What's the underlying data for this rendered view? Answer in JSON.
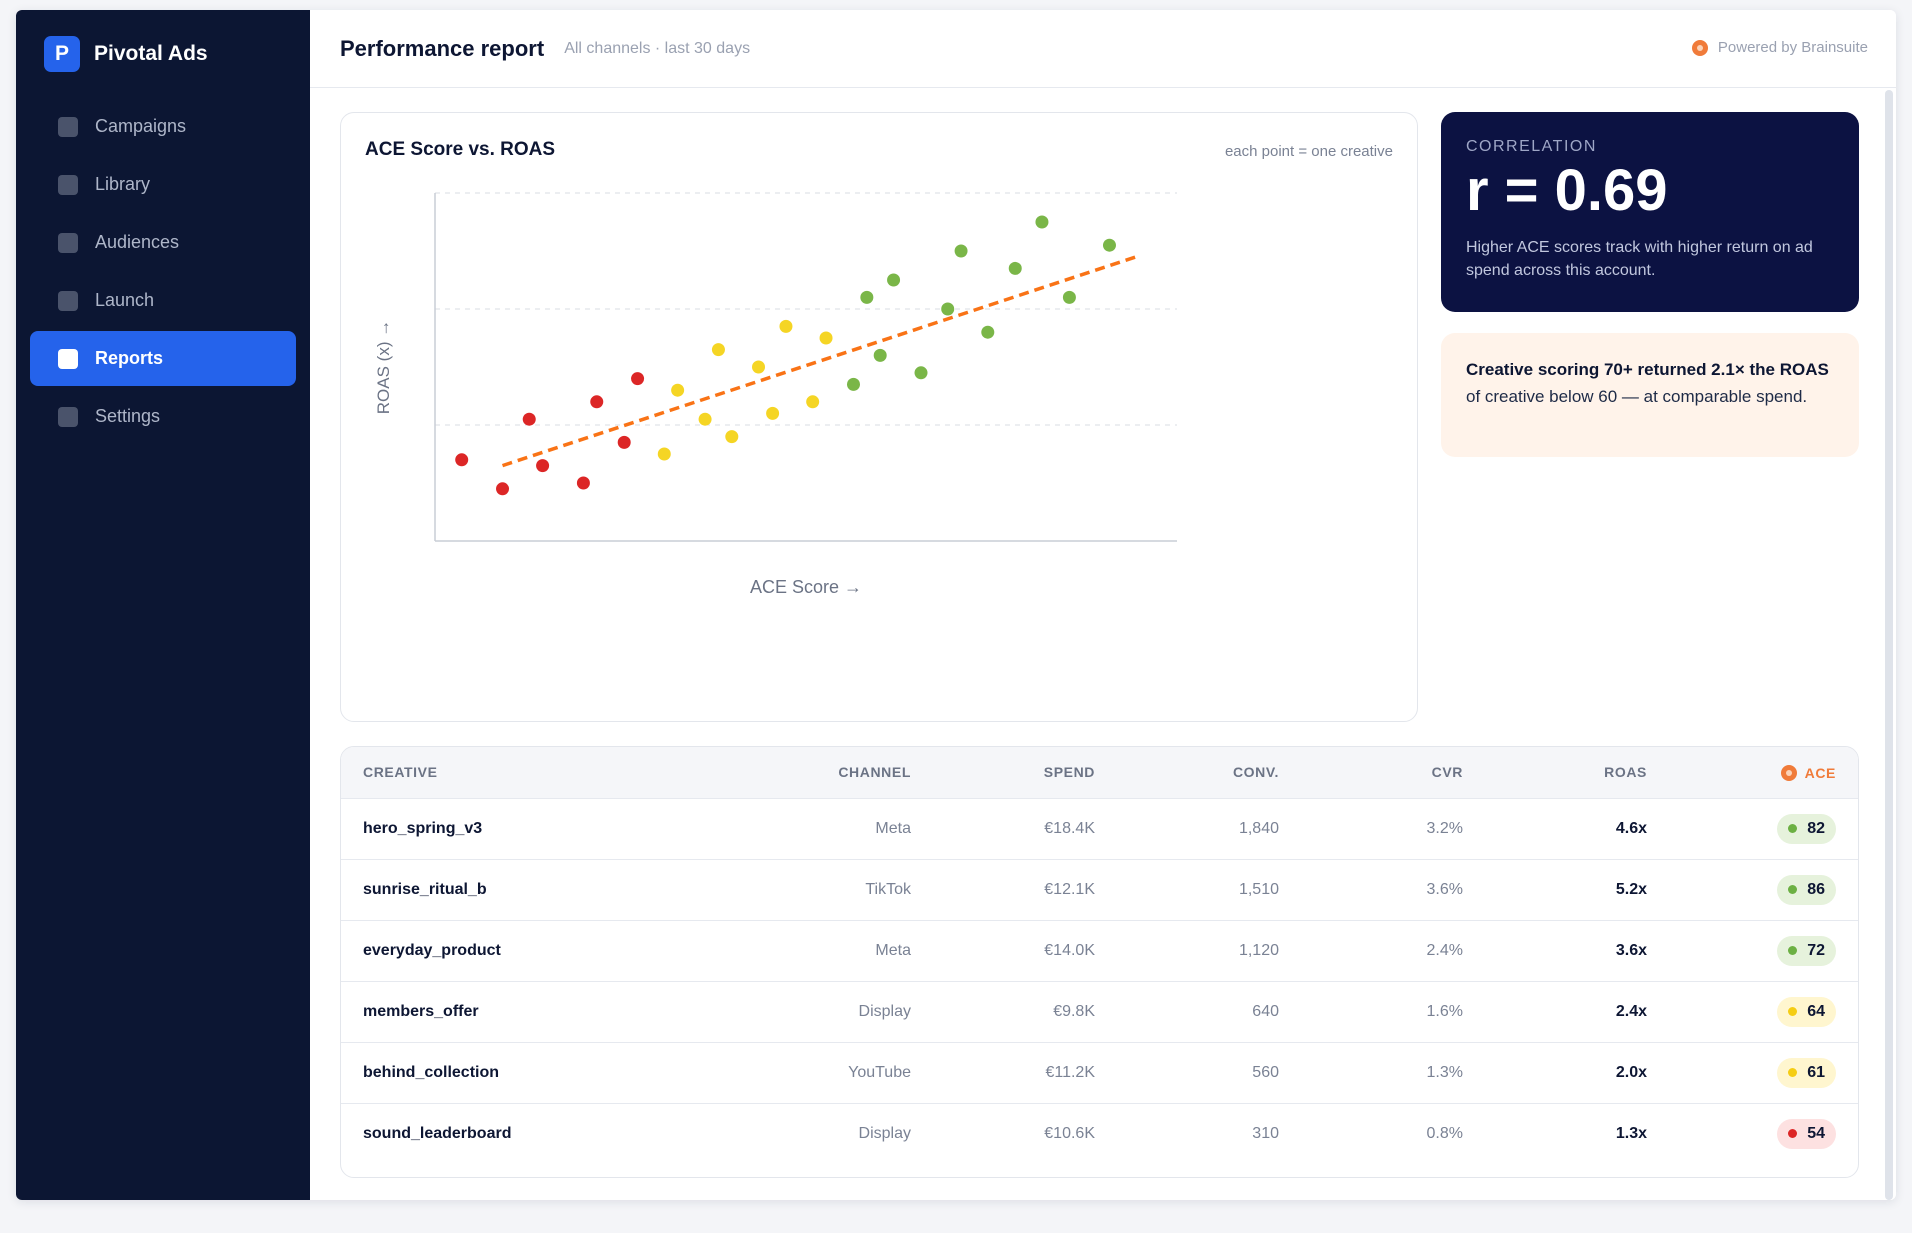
{
  "sidebar": {
    "brand": {
      "logo_letter": "P",
      "name": "Pivotal Ads"
    },
    "items": [
      {
        "label": "Campaigns",
        "active": false
      },
      {
        "label": "Library",
        "active": false
      },
      {
        "label": "Audiences",
        "active": false
      },
      {
        "label": "Launch",
        "active": false
      },
      {
        "label": "Reports",
        "active": true
      },
      {
        "label": "Settings",
        "active": false
      }
    ]
  },
  "header": {
    "title": "Performance report",
    "subtitle": "All channels · last 30 days",
    "powered_by": "Powered by Brainsuite"
  },
  "chart_card": {
    "title": "ACE Score vs. ROAS",
    "note": "each point = one creative"
  },
  "chart_data": {
    "type": "scatter",
    "xlabel": "ACE Score →",
    "ylabel": "ROAS (x) →",
    "xlim": [
      0,
      100
    ],
    "ylim": [
      0,
      6
    ],
    "grid": "horizontal-dashed",
    "colors": {
      "red": "#dc2626",
      "yellow": "#f5d524",
      "green": "#7ab648",
      "trend": "#f97316"
    },
    "points": [
      {
        "x": 3.6,
        "y": 1.4,
        "group": "red"
      },
      {
        "x": 9.1,
        "y": 0.9,
        "group": "red"
      },
      {
        "x": 12.7,
        "y": 2.1,
        "group": "red"
      },
      {
        "x": 14.5,
        "y": 1.3,
        "group": "red"
      },
      {
        "x": 20.0,
        "y": 1.0,
        "group": "red"
      },
      {
        "x": 21.8,
        "y": 2.4,
        "group": "red"
      },
      {
        "x": 25.5,
        "y": 1.7,
        "group": "red"
      },
      {
        "x": 27.3,
        "y": 2.8,
        "group": "red"
      },
      {
        "x": 30.9,
        "y": 1.5,
        "group": "yellow"
      },
      {
        "x": 32.7,
        "y": 2.6,
        "group": "yellow"
      },
      {
        "x": 36.4,
        "y": 2.1,
        "group": "yellow"
      },
      {
        "x": 38.2,
        "y": 3.3,
        "group": "yellow"
      },
      {
        "x": 40.0,
        "y": 1.8,
        "group": "yellow"
      },
      {
        "x": 43.6,
        "y": 3.0,
        "group": "yellow"
      },
      {
        "x": 45.5,
        "y": 2.2,
        "group": "yellow"
      },
      {
        "x": 47.3,
        "y": 3.7,
        "group": "yellow"
      },
      {
        "x": 50.9,
        "y": 2.4,
        "group": "yellow"
      },
      {
        "x": 52.7,
        "y": 3.5,
        "group": "yellow"
      },
      {
        "x": 56.4,
        "y": 2.7,
        "group": "green"
      },
      {
        "x": 58.2,
        "y": 4.2,
        "group": "green"
      },
      {
        "x": 60.0,
        "y": 3.2,
        "group": "green"
      },
      {
        "x": 61.8,
        "y": 4.5,
        "group": "green"
      },
      {
        "x": 65.5,
        "y": 2.9,
        "group": "green"
      },
      {
        "x": 69.1,
        "y": 4.0,
        "group": "green"
      },
      {
        "x": 70.9,
        "y": 5.0,
        "group": "green"
      },
      {
        "x": 74.5,
        "y": 3.6,
        "group": "green"
      },
      {
        "x": 78.2,
        "y": 4.7,
        "group": "green"
      },
      {
        "x": 81.8,
        "y": 5.5,
        "group": "green"
      },
      {
        "x": 85.5,
        "y": 4.2,
        "group": "green"
      },
      {
        "x": 90.9,
        "y": 5.1,
        "group": "green"
      }
    ],
    "trendline": {
      "x": [
        9.1,
        94.5
      ],
      "y": [
        1.3,
        4.9
      ]
    }
  },
  "correlation": {
    "label": "CORRELATION",
    "value": "r = 0.69",
    "description": "Higher ACE scores track with higher return on ad spend across this account."
  },
  "insight": {
    "bold_1": "Creative scoring 70+ returned 2.1× the",
    "bold_2": "ROAS",
    "rest": " of creative below 60 — at comparable spend."
  },
  "table": {
    "headers": {
      "creative": "CREATIVE",
      "channel": "CHANNEL",
      "spend": "SPEND",
      "conv": "CONV.",
      "cvr": "CVR",
      "roas": "ROAS",
      "ace": "ACE"
    },
    "rows": [
      {
        "creative": "hero_spring_v3",
        "channel": "Meta",
        "spend": "€18.4K",
        "conv": "1,840",
        "cvr": "3.2%",
        "roas": "4.6x",
        "ace": "82",
        "ace_level": "green"
      },
      {
        "creative": "sunrise_ritual_b",
        "channel": "TikTok",
        "spend": "€12.1K",
        "conv": "1,510",
        "cvr": "3.6%",
        "roas": "5.2x",
        "ace": "86",
        "ace_level": "green"
      },
      {
        "creative": "everyday_product",
        "channel": "Meta",
        "spend": "€14.0K",
        "conv": "1,120",
        "cvr": "2.4%",
        "roas": "3.6x",
        "ace": "72",
        "ace_level": "green"
      },
      {
        "creative": "members_offer",
        "channel": "Display",
        "spend": "€9.8K",
        "conv": "640",
        "cvr": "1.6%",
        "roas": "2.4x",
        "ace": "64",
        "ace_level": "yellow"
      },
      {
        "creative": "behind_collection",
        "channel": "YouTube",
        "spend": "€11.2K",
        "conv": "560",
        "cvr": "1.3%",
        "roas": "2.0x",
        "ace": "61",
        "ace_level": "yellow"
      },
      {
        "creative": "sound_leaderboard",
        "channel": "Display",
        "spend": "€10.6K",
        "conv": "310",
        "cvr": "0.8%",
        "roas": "1.3x",
        "ace": "54",
        "ace_level": "red"
      }
    ]
  }
}
